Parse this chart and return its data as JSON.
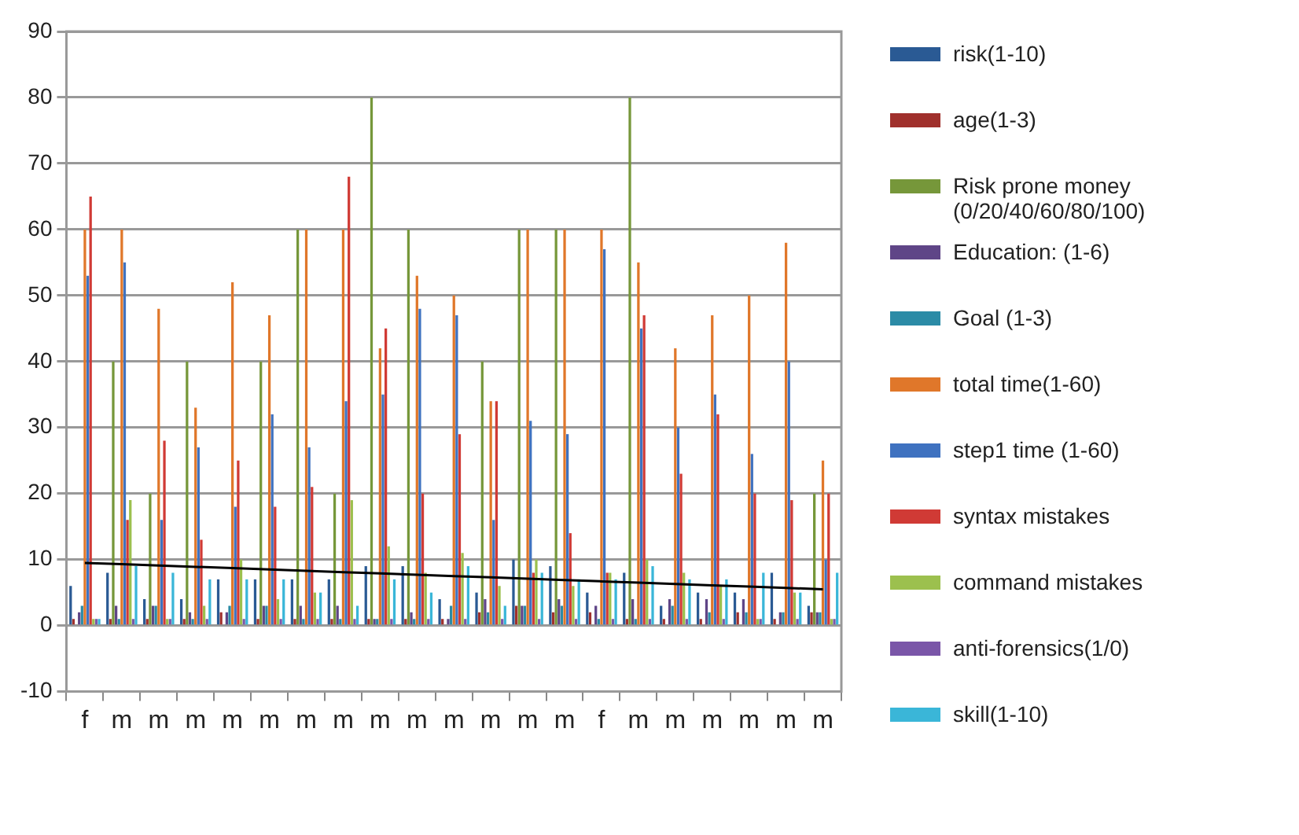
{
  "chart_data": {
    "type": "bar",
    "categories": [
      "f",
      "m",
      "m",
      "m",
      "m",
      "m",
      "m",
      "m",
      "m",
      "m",
      "m",
      "m",
      "m",
      "m",
      "f",
      "m",
      "m",
      "m",
      "m",
      "m",
      "m"
    ],
    "ylim": [
      -10,
      90
    ],
    "yticks": [
      -10,
      0,
      10,
      20,
      30,
      40,
      50,
      60,
      70,
      80,
      90
    ],
    "grid": "y",
    "legend": "right",
    "series": [
      {
        "name": "risk(1-10)",
        "color": "#2a5a94",
        "values": [
          6,
          8,
          4,
          4,
          7,
          7,
          7,
          7,
          9,
          9,
          4,
          5,
          10,
          9,
          5,
          8,
          3,
          5,
          5,
          8,
          3
        ]
      },
      {
        "name": "age(1-3)",
        "color": "#a0302c",
        "values": [
          1,
          1,
          1,
          1,
          2,
          1,
          1,
          1,
          1,
          1,
          1,
          2,
          3,
          2,
          2,
          1,
          1,
          1,
          2,
          1,
          2
        ]
      },
      {
        "name": "Risk prone money (0/20/40/60/80/100)",
        "color": "#76973a",
        "values": [
          0,
          40,
          20,
          40,
          0,
          40,
          60,
          20,
          80,
          60,
          0,
          40,
          60,
          60,
          0,
          80,
          0,
          0,
          0,
          0,
          20
        ]
      },
      {
        "name": "Education: (1-6)",
        "color": "#5f4587",
        "values": [
          2,
          3,
          3,
          2,
          2,
          3,
          3,
          3,
          1,
          2,
          1,
          4,
          3,
          4,
          3,
          4,
          4,
          4,
          4,
          2,
          2
        ]
      },
      {
        "name": "Goal (1-3)",
        "color": "#2b8ba6",
        "values": [
          3,
          1,
          3,
          1,
          3,
          3,
          1,
          1,
          1,
          1,
          3,
          2,
          3,
          3,
          1,
          1,
          3,
          2,
          2,
          2,
          2
        ]
      },
      {
        "name": "total time(1-60)",
        "color": "#e0772a",
        "values": [
          60,
          60,
          48,
          33,
          52,
          47,
          60,
          60,
          42,
          53,
          50,
          34,
          60,
          60,
          60,
          55,
          42,
          47,
          50,
          58,
          25
        ]
      },
      {
        "name": "step1 time (1-60)",
        "color": "#3f72c0",
        "values": [
          53,
          55,
          16,
          27,
          18,
          32,
          27,
          34,
          35,
          48,
          47,
          16,
          31,
          29,
          57,
          45,
          30,
          35,
          26,
          40,
          10
        ]
      },
      {
        "name": "syntax mistakes",
        "color": "#d03a35",
        "values": [
          65,
          16,
          28,
          13,
          25,
          18,
          21,
          68,
          45,
          20,
          29,
          34,
          8,
          14,
          8,
          47,
          23,
          32,
          20,
          19,
          20
        ]
      },
      {
        "name": "command mistakes",
        "color": "#9cc04e",
        "values": [
          1,
          19,
          1,
          3,
          10,
          4,
          5,
          19,
          12,
          8,
          11,
          6,
          10,
          6,
          8,
          10,
          8,
          6,
          1,
          5,
          1
        ]
      },
      {
        "name": "anti-forensics(1/0)",
        "color": "#7a56a8",
        "values": [
          1,
          1,
          1,
          1,
          1,
          1,
          1,
          1,
          1,
          1,
          1,
          1,
          1,
          1,
          1,
          1,
          1,
          1,
          1,
          1,
          1
        ]
      },
      {
        "name": "skill(1-10)",
        "color": "#3ab6d8",
        "values": [
          1,
          9,
          8,
          7,
          7,
          7,
          5,
          3,
          7,
          5,
          9,
          3,
          8,
          7,
          7,
          9,
          7,
          7,
          8,
          5,
          8
        ]
      },
      {
        "type": "line",
        "color": "#000000",
        "marker": "none",
        "values": [
          9.5,
          9.3,
          9.1,
          8.9,
          8.7,
          8.5,
          8.3,
          8.1,
          7.9,
          7.7,
          7.5,
          7.3,
          7.1,
          6.9,
          6.7,
          6.5,
          6.3,
          6.1,
          5.9,
          5.7,
          5.5
        ]
      }
    ]
  }
}
